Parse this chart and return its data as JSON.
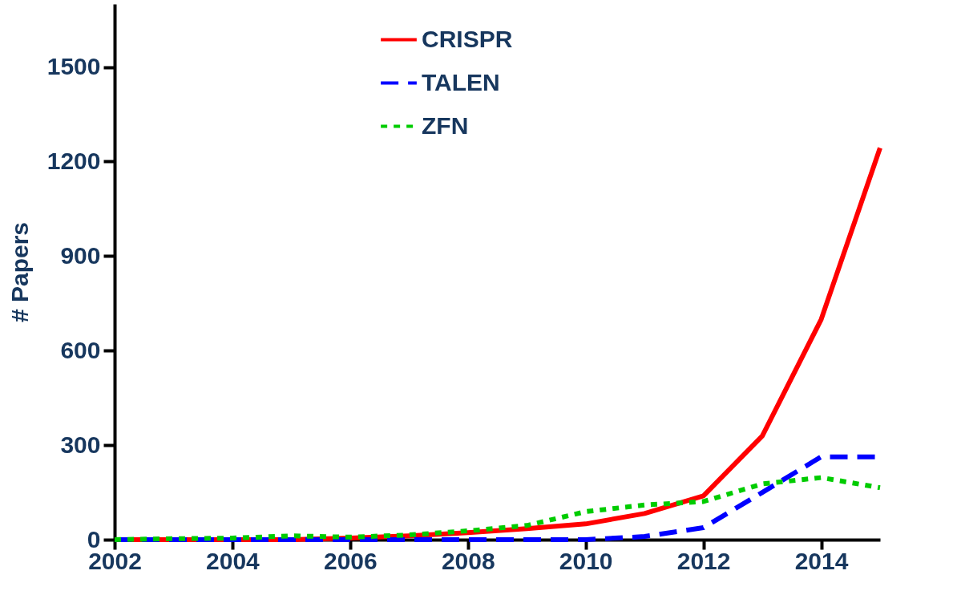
{
  "chart_data": {
    "type": "line",
    "ylabel": "# Papers",
    "x": [
      2002,
      2003,
      2004,
      2005,
      2006,
      2007,
      2008,
      2009,
      2010,
      2011,
      2012,
      2013,
      2014,
      2015
    ],
    "xlim": [
      2002,
      2015
    ],
    "xticks": [
      2002,
      2004,
      2006,
      2008,
      2010,
      2012,
      2014
    ],
    "ylim": [
      0,
      1700
    ],
    "yticks": [
      0,
      300,
      600,
      900,
      1200,
      1500
    ],
    "series": [
      {
        "name": "CRISPR",
        "color": "#ff0000",
        "line_style": "solid",
        "values": [
          0,
          0,
          0,
          0,
          5,
          12,
          22,
          35,
          50,
          83,
          139,
          329,
          699,
          1243
        ]
      },
      {
        "name": "TALEN",
        "color": "#0000ff",
        "line_style": "dashed",
        "values": [
          0,
          0,
          0,
          0,
          0,
          0,
          0,
          0,
          0,
          10,
          38,
          150,
          263,
          263
        ]
      },
      {
        "name": "ZFN",
        "color": "#00cc00",
        "line_style": "dotted",
        "values": [
          0,
          3,
          5,
          12,
          8,
          15,
          28,
          45,
          89,
          110,
          121,
          177,
          197,
          165
        ]
      }
    ],
    "grid": false,
    "legend": "top left",
    "marker": "none"
  }
}
